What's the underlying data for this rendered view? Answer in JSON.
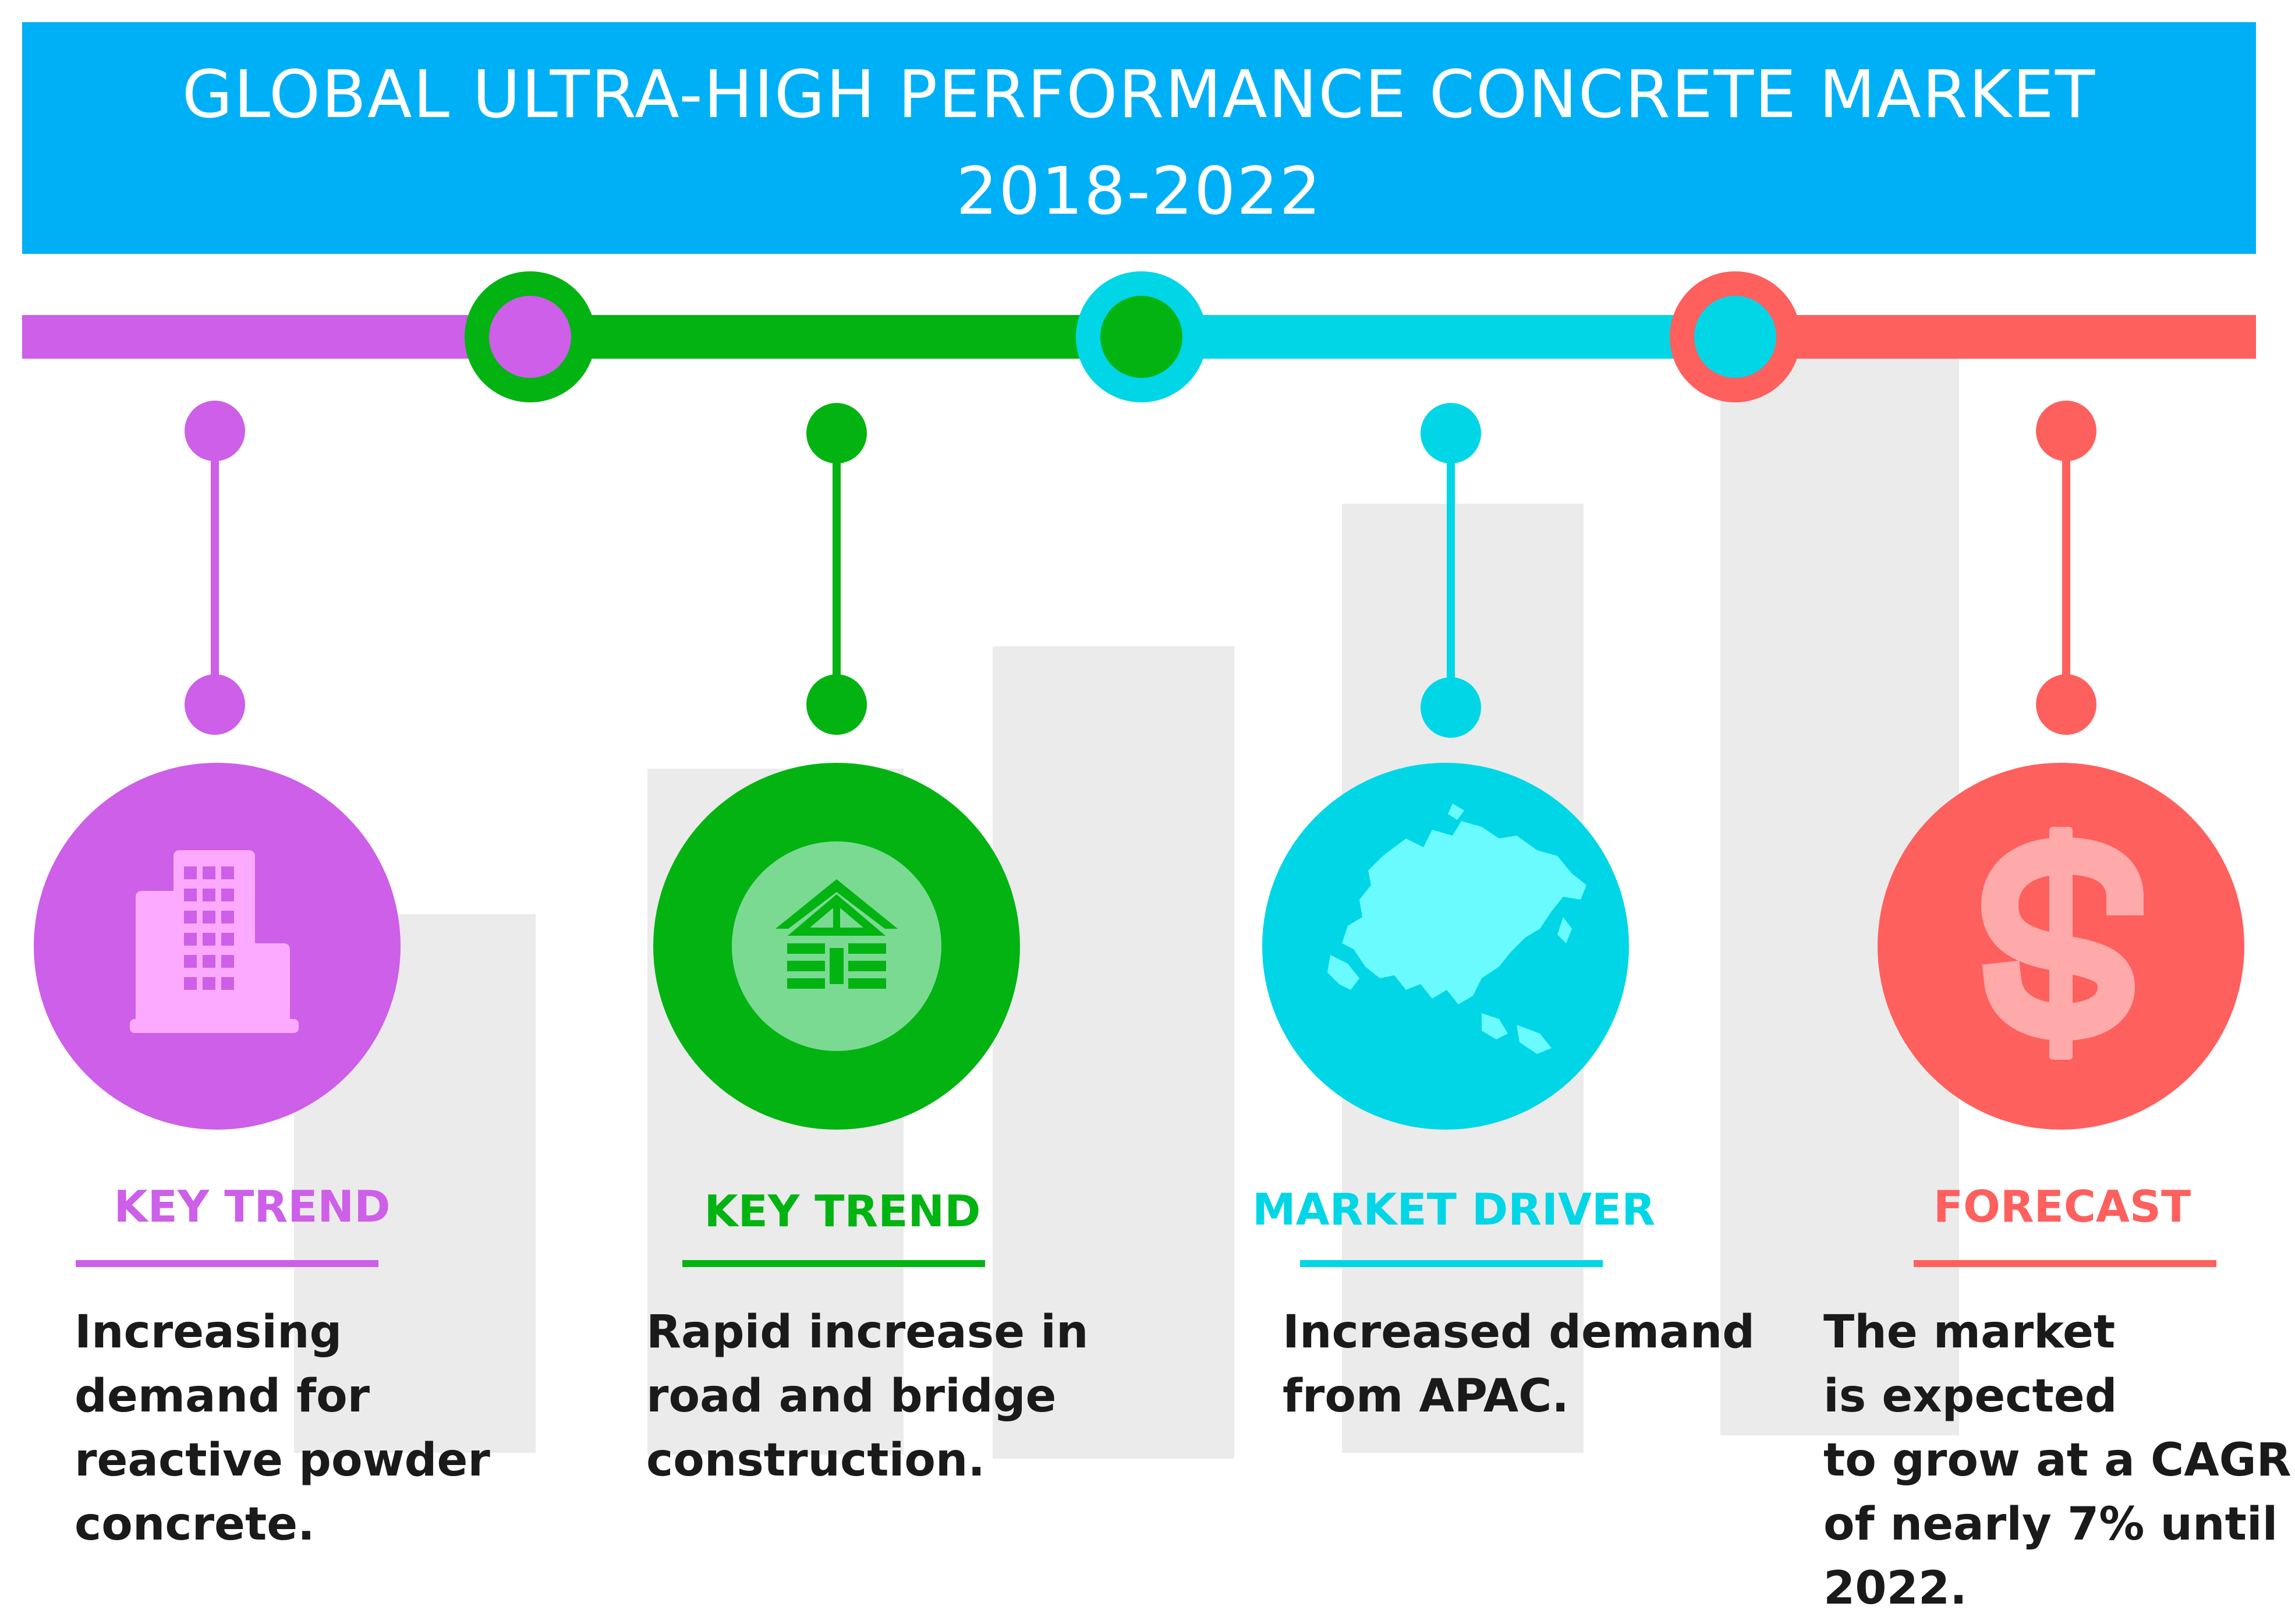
{
  "title": {
    "line1": "GLOBAL ULTRA-HIGH PERFORMANCE CONCRETE MARKET",
    "line2": "2018-2022"
  },
  "colors": {
    "header": "#00b0f7",
    "purple": "#cd5fe8",
    "green": "#03b312",
    "cyan": "#00d6e6",
    "red": "#fe605e",
    "text": "#1a1a1a",
    "background_bars": "#ebebeb"
  },
  "items": [
    {
      "label": "KEY TREND",
      "icon": "building-icon",
      "description": [
        "Increasing",
        "demand for",
        "reactive powder",
        "concrete."
      ]
    },
    {
      "label": "KEY TREND",
      "icon": "bridge-house-icon",
      "description": [
        "Rapid increase in",
        "road and bridge",
        "construction."
      ]
    },
    {
      "label": "MARKET DRIVER",
      "icon": "asia-map-icon",
      "description": [
        "Increased demand",
        "from APAC."
      ]
    },
    {
      "label": "FORECAST",
      "icon": "dollar-icon",
      "description": [
        "The market",
        "is expected",
        "to grow at a CAGR",
        "of nearly 7% until",
        "2022."
      ]
    }
  ]
}
